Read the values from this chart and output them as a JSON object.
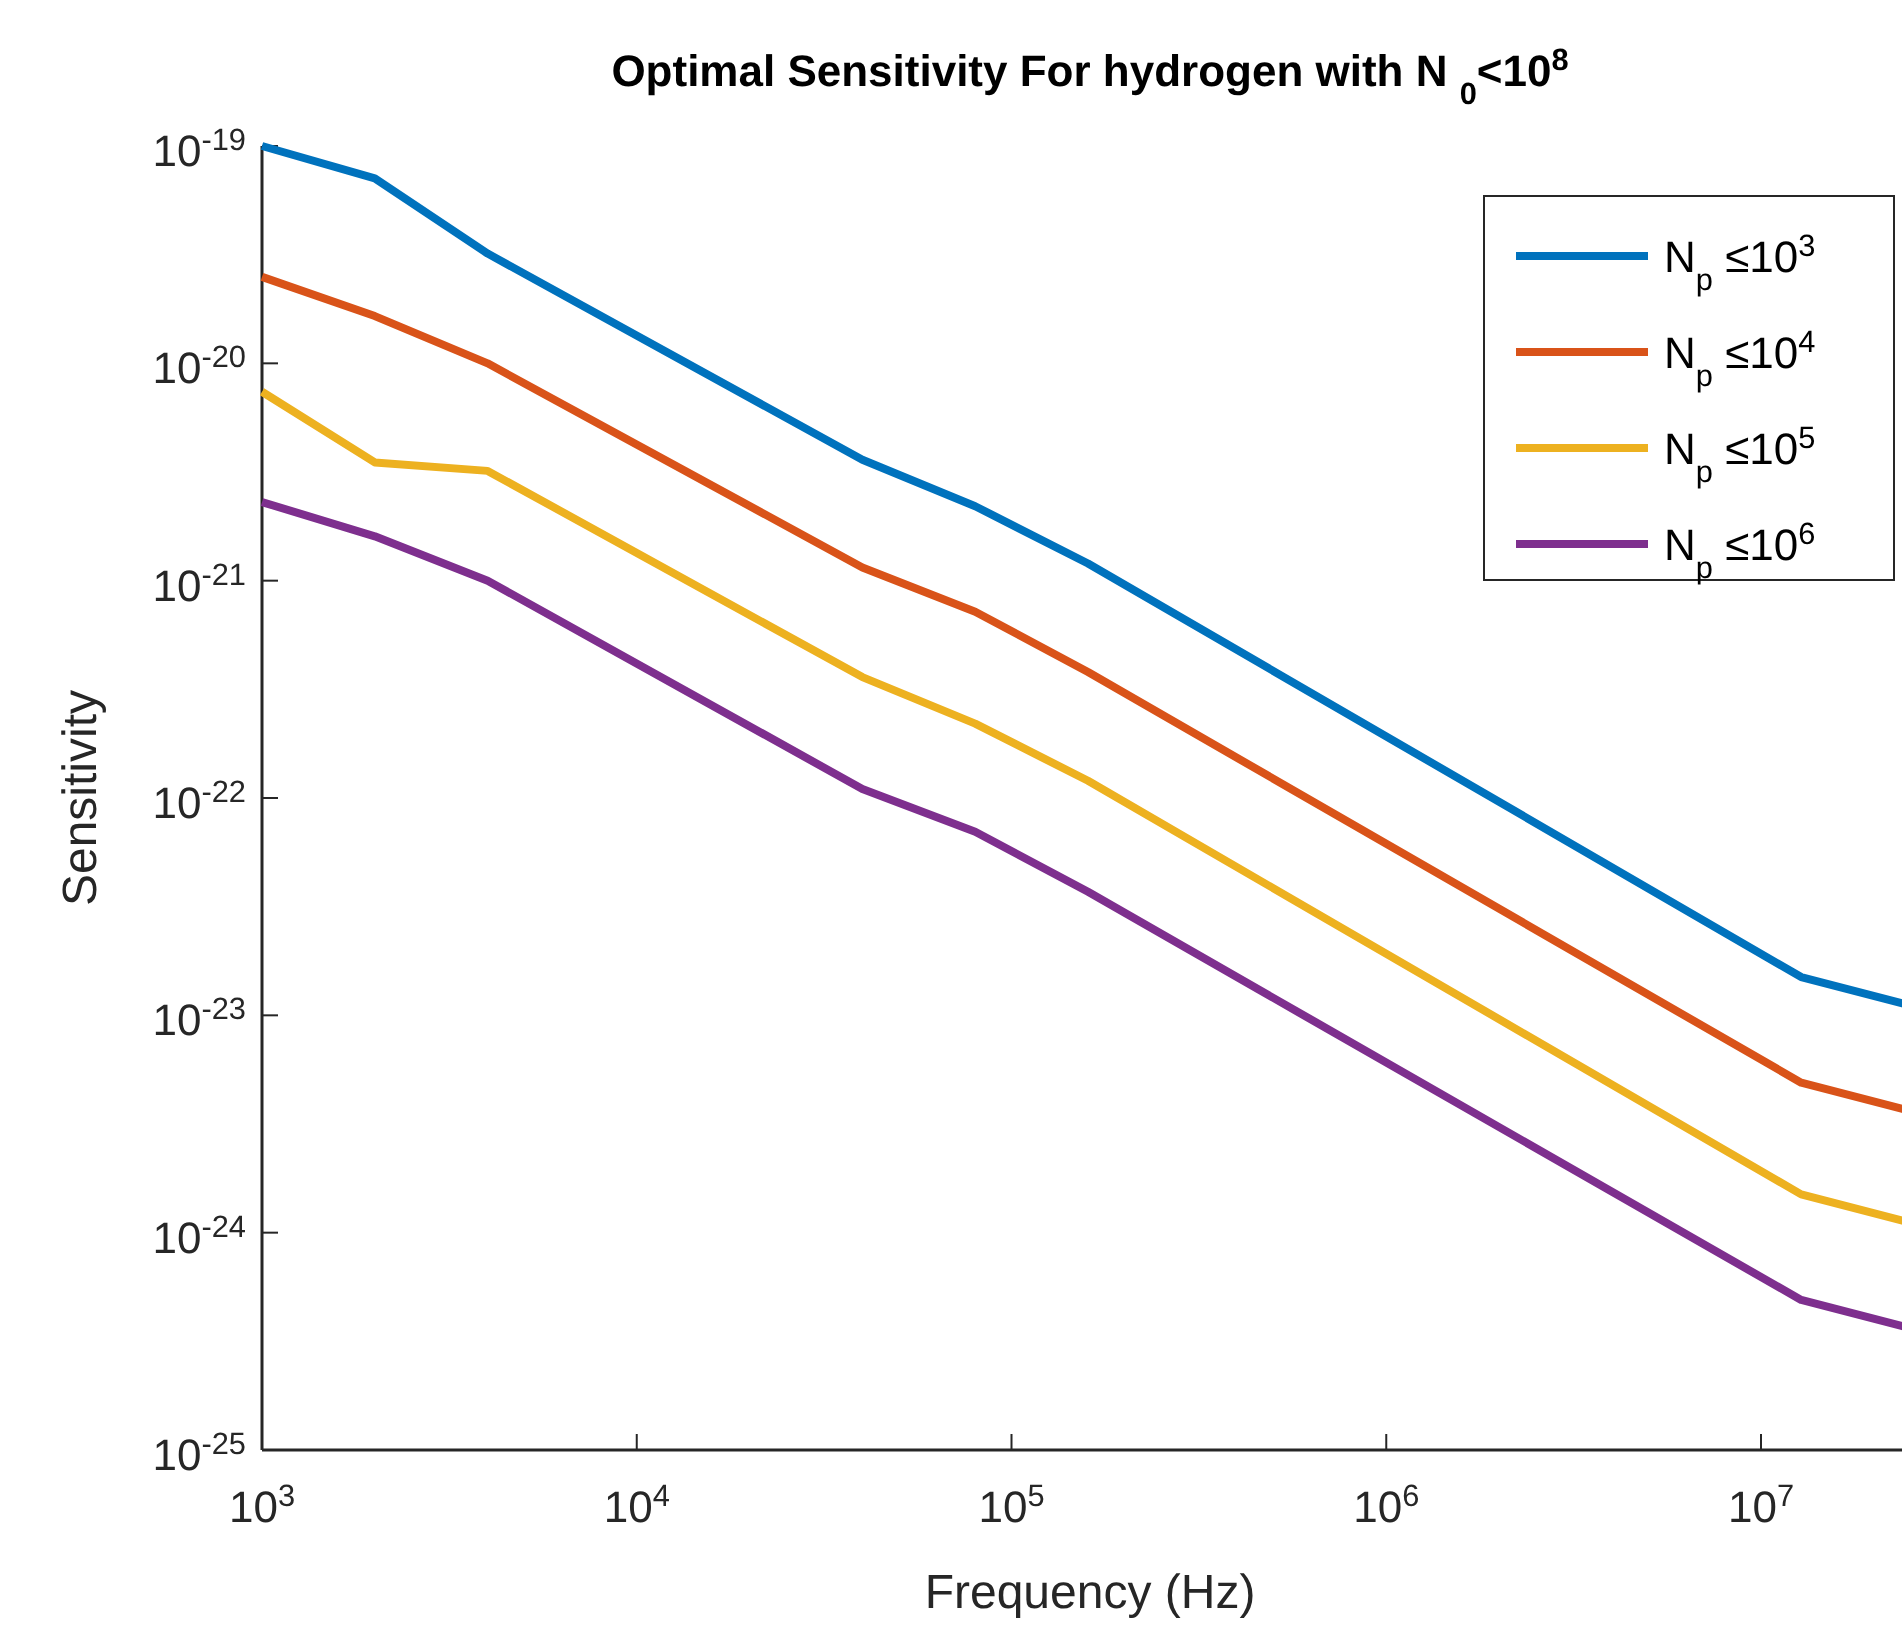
{
  "chart_data": {
    "type": "line",
    "title": "Optimal Sensitivity For hydrogen with N $_{0}$<10$^{8}$",
    "xlabel": "Frequency (Hz)",
    "ylabel": "Sensitivity",
    "log": "xy",
    "grid": false,
    "legend": "top right",
    "line_style": "solid",
    "x": [
      1000,
      2000,
      4000,
      40000,
      80000,
      160000,
      12800000,
      25600000
    ],
    "xlim": [
      1000,
      25600000
    ],
    "ylim": [
      1e-25,
      1e-19
    ],
    "xticks": [
      {
        "value": 1000,
        "label": "10$^{3}$"
      },
      {
        "value": 10000,
        "label": "10$^{4}$"
      },
      {
        "value": 100000,
        "label": "10$^{5}$"
      },
      {
        "value": 1000000,
        "label": "10$^{6}$"
      },
      {
        "value": 10000000,
        "label": "10$^{7}$"
      }
    ],
    "yticks": [
      {
        "value": 1e-25,
        "label": "10$^{-25}$"
      },
      {
        "value": 1e-24,
        "label": "10$^{-24}$"
      },
      {
        "value": 1e-23,
        "label": "10$^{-23}$"
      },
      {
        "value": 1e-22,
        "label": "10$^{-22}$"
      },
      {
        "value": 1e-21,
        "label": "10$^{-21}$"
      },
      {
        "value": 1e-20,
        "label": "10$^{-20}$"
      },
      {
        "value": 1e-19,
        "label": "10$^{-19}$"
      }
    ],
    "series": [
      {
        "name": "N$_{p}$ ≤10$^{3}$",
        "color": "#0072bd",
        "values": [
          1e-19,
          7.1e-20,
          3.2e-20,
          3.6e-21,
          2.2e-21,
          1.2e-21,
          1.5e-23,
          1.1e-23
        ]
      },
      {
        "name": "N$_{p}$ ≤10$^{4}$",
        "color": "#d95319",
        "values": [
          2.5e-20,
          1.65e-20,
          1e-20,
          1.15e-21,
          7.2e-22,
          3.8e-22,
          4.9e-24,
          3.6e-24
        ]
      },
      {
        "name": "N$_{p}$ ≤10$^{5}$",
        "color": "#edb120",
        "values": [
          7.4e-21,
          3.5e-21,
          3.2e-21,
          3.6e-22,
          2.2e-22,
          1.2e-22,
          1.5e-24,
          1.1e-24
        ]
      },
      {
        "name": "N$_{p}$ ≤10$^{6}$",
        "color": "#7e2f8e",
        "values": [
          2.3e-21,
          1.6e-21,
          1e-21,
          1.1e-22,
          7e-23,
          3.7e-23,
          4.9e-25,
          3.6e-25
        ]
      }
    ]
  }
}
